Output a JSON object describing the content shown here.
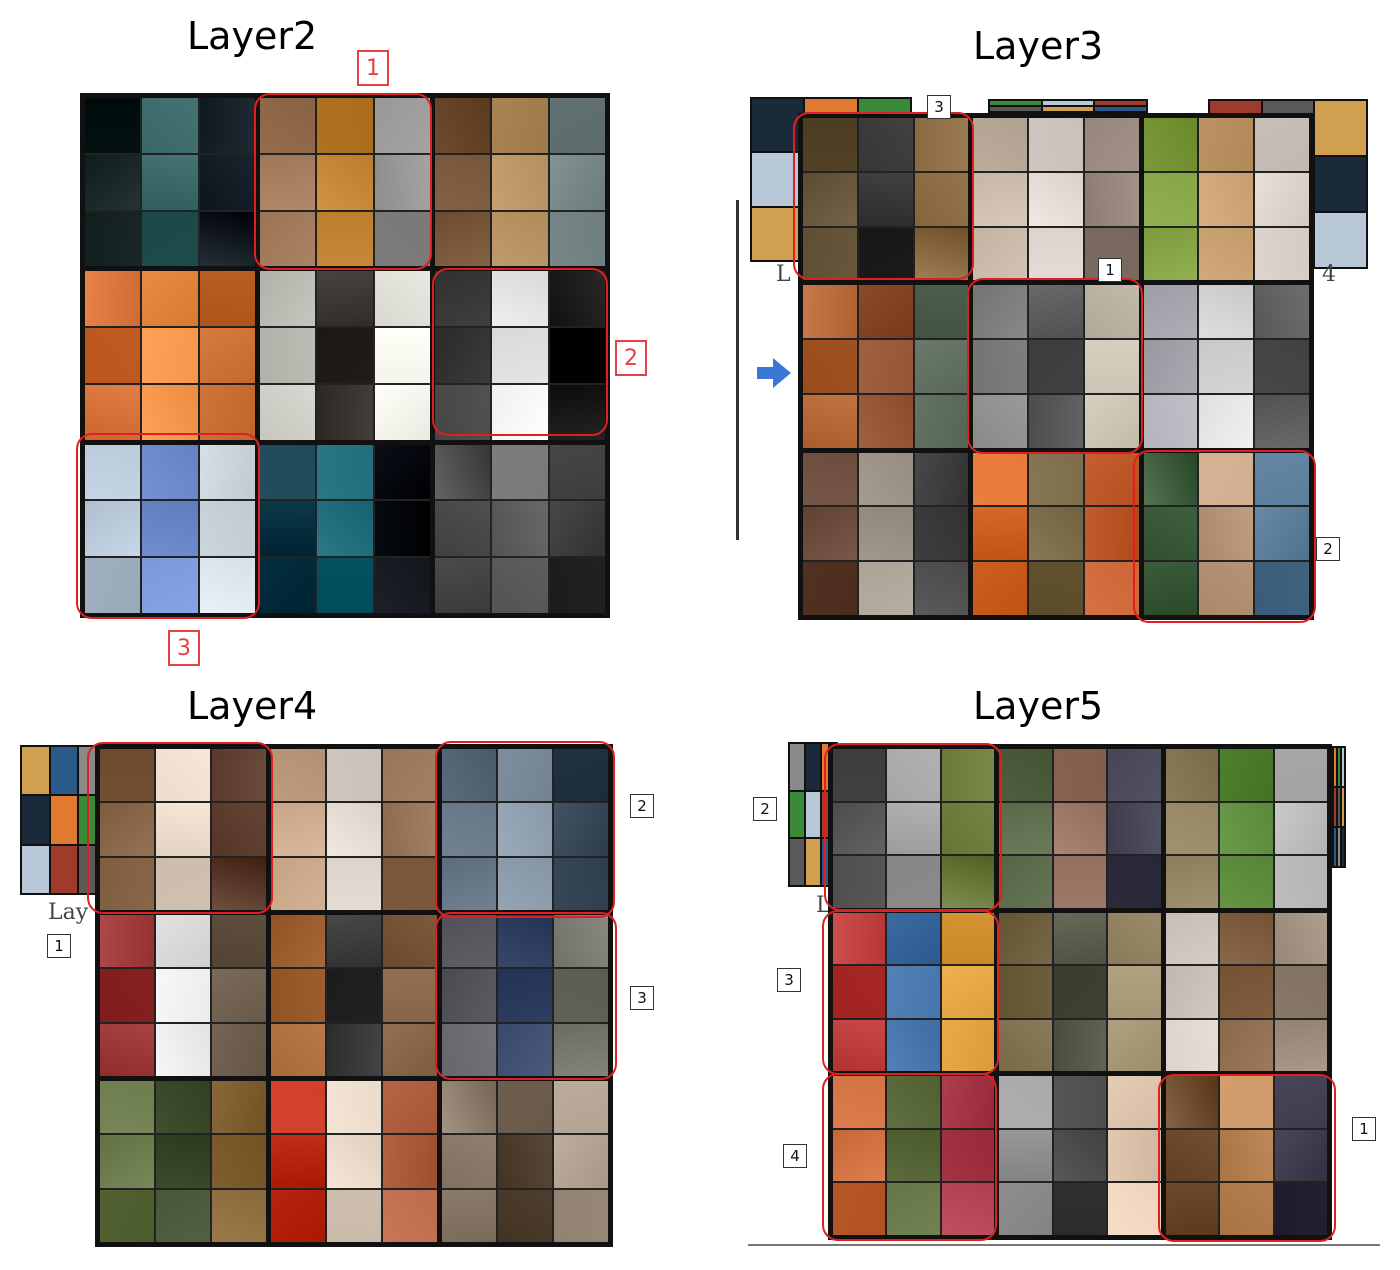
{
  "panels": [
    {
      "title": "Layer2"
    },
    {
      "title": "Layer3"
    },
    {
      "title": "Layer4"
    },
    {
      "title": "Layer5"
    }
  ],
  "layer2_labels": [
    "1",
    "2",
    "3"
  ],
  "layer3_labels": [
    "3",
    "1",
    "2"
  ],
  "layer3_fragments": {
    "left": "L",
    "right": "4"
  },
  "layer4_labels": [
    "2",
    "3",
    "1"
  ],
  "layer4_fragments": {
    "left": "Lay"
  },
  "layer5_labels": [
    "2",
    "3",
    "4",
    "1"
  ],
  "layer5_fragments": {
    "left": "L"
  },
  "colors": {
    "highlight": "#e02020",
    "arrow": "#3a78d8"
  }
}
